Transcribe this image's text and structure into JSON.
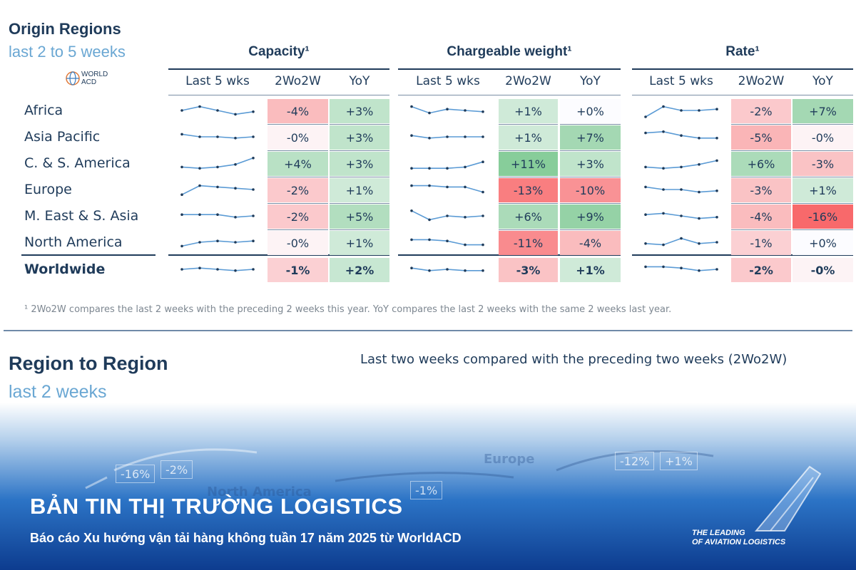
{
  "header": {
    "title": "Origin Regions",
    "subtitle": "last 2 to 5 weeks",
    "logo_line1": "WORLD",
    "logo_line2": "ACD"
  },
  "chart_data": {
    "type": "table",
    "groups": [
      "Capacity¹",
      "Chargeable weight¹",
      "Rate¹"
    ],
    "column_headers": [
      "Last 5 wks",
      "2Wo2W",
      "YoY"
    ],
    "rows": [
      {
        "region": "Africa",
        "bold": false,
        "capacity": {
          "spark": [
            5,
            8,
            5,
            2,
            4
          ],
          "w2w": "-4%",
          "yoy": "+3%"
        },
        "weight": {
          "spark": [
            8,
            3,
            6,
            5,
            4
          ],
          "w2w": "+1%",
          "yoy": "+0%"
        },
        "rate": {
          "spark": [
            0,
            8,
            5,
            5,
            6
          ],
          "w2w": "-2%",
          "yoy": "+7%"
        }
      },
      {
        "region": "Asia Pacific",
        "bold": false,
        "capacity": {
          "spark": [
            7,
            5,
            5,
            4,
            5
          ],
          "w2w": "-0%",
          "yoy": "+3%"
        },
        "weight": {
          "spark": [
            6,
            4,
            5,
            5,
            5
          ],
          "w2w": "+1%",
          "yoy": "+7%"
        },
        "rate": {
          "spark": [
            8,
            9,
            6,
            4,
            4
          ],
          "w2w": "-5%",
          "yoy": "-0%"
        }
      },
      {
        "region": "C. & S. America",
        "bold": false,
        "capacity": {
          "spark": [
            2,
            1,
            2,
            4,
            9
          ],
          "w2w": "+4%",
          "yoy": "+3%"
        },
        "weight": {
          "spark": [
            1,
            1,
            1,
            2,
            6
          ],
          "w2w": "+11%",
          "yoy": "+3%"
        },
        "rate": {
          "spark": [
            2,
            1,
            2,
            4,
            7
          ],
          "w2w": "+6%",
          "yoy": "-3%"
        }
      },
      {
        "region": "Europe",
        "bold": false,
        "capacity": {
          "spark": [
            1,
            8,
            7,
            6,
            5
          ],
          "w2w": "-2%",
          "yoy": "+1%"
        },
        "weight": {
          "spark": [
            8,
            8,
            7,
            7,
            3
          ],
          "w2w": "-13%",
          "yoy": "-10%"
        },
        "rate": {
          "spark": [
            7,
            5,
            5,
            3,
            4
          ],
          "w2w": "-3%",
          "yoy": "+1%"
        }
      },
      {
        "region": "M. East & S. Asia",
        "bold": false,
        "capacity": {
          "spark": [
            6,
            6,
            6,
            4,
            5
          ],
          "w2w": "-2%",
          "yoy": "+5%"
        },
        "weight": {
          "spark": [
            9,
            2,
            5,
            4,
            5
          ],
          "w2w": "+6%",
          "yoy": "+9%"
        },
        "rate": {
          "spark": [
            6,
            7,
            5,
            3,
            4
          ],
          "w2w": "-4%",
          "yoy": "-16%"
        }
      },
      {
        "region": "North America",
        "bold": false,
        "capacity": {
          "spark": [
            2,
            5,
            6,
            5,
            6
          ],
          "w2w": "-0%",
          "yoy": "+1%"
        },
        "weight": {
          "spark": [
            7,
            7,
            6,
            3,
            3
          ],
          "w2w": "-11%",
          "yoy": "-4%"
        },
        "rate": {
          "spark": [
            4,
            3,
            8,
            4,
            5
          ],
          "w2w": "-1%",
          "yoy": "+0%"
        }
      },
      {
        "region": "Worldwide",
        "bold": true,
        "capacity": {
          "spark": [
            5,
            6,
            5,
            4,
            5
          ],
          "w2w": "-1%",
          "yoy": "+2%"
        },
        "weight": {
          "spark": [
            6,
            4,
            5,
            4,
            4
          ],
          "w2w": "-3%",
          "yoy": "+1%"
        },
        "rate": {
          "spark": [
            7,
            7,
            6,
            4,
            5
          ],
          "w2w": "-2%",
          "yoy": "-0%"
        }
      }
    ],
    "colors": {
      "positive": "#63be7b",
      "negative": "#f8696b",
      "neutral": "#fcfcff"
    }
  },
  "footnote": "¹ 2Wo2W compares the last 2 weeks with the preceding 2 weeks this year. YoY compares the last 2 weeks with the same 2 weeks last year.",
  "region_to_region": {
    "title": "Region to Region",
    "subtitle": "last 2 weeks",
    "description": "Last two weeks compared with the preceding two weeks (2Wo2W)",
    "map_labels": [
      "Europe",
      "North America"
    ],
    "badges": [
      "-16%",
      "-2%",
      "-1%",
      "-12%",
      "+1%"
    ]
  },
  "banner": {
    "title": "BẢN TIN THỊ TRƯỜNG LOGISTICS",
    "subtitle": "Báo cáo Xu hướng vận tải hàng không tuần 17 năm 2025 từ WorldACD",
    "tagline_line1": "THE LEADING",
    "tagline_line2": "OF AVIATION LOGISTICS"
  }
}
